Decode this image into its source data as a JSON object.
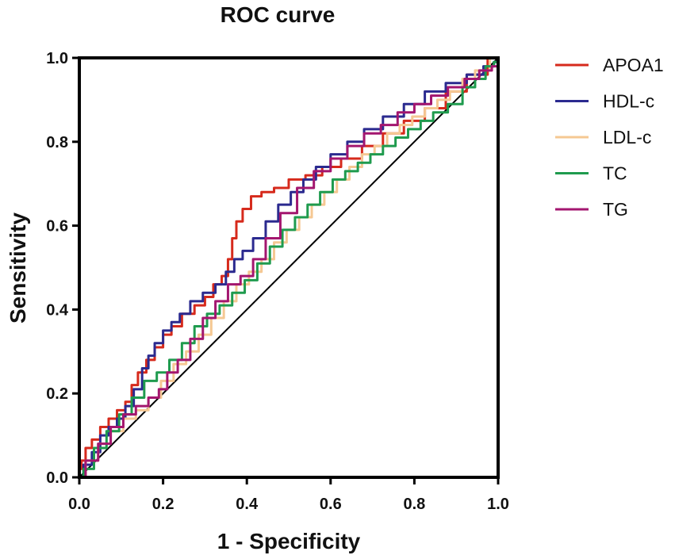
{
  "chart_data": {
    "type": "line",
    "title": "ROC curve",
    "xlabel": "1 - Specificity",
    "ylabel": "Sensitivity",
    "xlim": [
      0,
      1
    ],
    "ylim": [
      0,
      1
    ],
    "xticks": [
      "0.0",
      "0.2",
      "0.4",
      "0.6",
      "0.8",
      "1.0"
    ],
    "yticks": [
      "0.0",
      "0.2",
      "0.4",
      "0.6",
      "0.8",
      "1.0"
    ],
    "grid": false,
    "legend_position": "right",
    "reference_line": {
      "name": "diagonal",
      "x": [
        0,
        1
      ],
      "y": [
        0,
        1
      ],
      "color": "#000000"
    },
    "series": [
      {
        "name": "APOA1",
        "color": "#d62a1c",
        "x": [
          0.0,
          0.0,
          0.01,
          0.02,
          0.04,
          0.06,
          0.08,
          0.1,
          0.12,
          0.13,
          0.15,
          0.17,
          0.19,
          0.21,
          0.23,
          0.26,
          0.29,
          0.31,
          0.33,
          0.35,
          0.36,
          0.37,
          0.38,
          0.4,
          0.42,
          0.45,
          0.48,
          0.52,
          0.56,
          0.6,
          0.65,
          0.7,
          0.75,
          0.8,
          0.85,
          0.9,
          0.95,
          1.0
        ],
        "y": [
          0.0,
          0.02,
          0.04,
          0.07,
          0.09,
          0.12,
          0.14,
          0.16,
          0.18,
          0.22,
          0.25,
          0.28,
          0.31,
          0.34,
          0.36,
          0.39,
          0.41,
          0.43,
          0.46,
          0.48,
          0.52,
          0.57,
          0.61,
          0.64,
          0.67,
          0.68,
          0.69,
          0.71,
          0.72,
          0.74,
          0.76,
          0.79,
          0.82,
          0.85,
          0.88,
          0.92,
          0.96,
          1.0
        ]
      },
      {
        "name": "HDL-c",
        "color": "#2b2a8f",
        "x": [
          0.0,
          0.02,
          0.04,
          0.06,
          0.08,
          0.1,
          0.12,
          0.14,
          0.16,
          0.17,
          0.19,
          0.21,
          0.23,
          0.25,
          0.28,
          0.31,
          0.34,
          0.36,
          0.38,
          0.4,
          0.43,
          0.46,
          0.49,
          0.52,
          0.55,
          0.58,
          0.62,
          0.66,
          0.7,
          0.75,
          0.8,
          0.85,
          0.9,
          0.95,
          0.98,
          1.0
        ],
        "y": [
          0.0,
          0.03,
          0.06,
          0.1,
          0.12,
          0.14,
          0.17,
          0.21,
          0.26,
          0.29,
          0.32,
          0.35,
          0.37,
          0.39,
          0.42,
          0.44,
          0.46,
          0.49,
          0.52,
          0.54,
          0.57,
          0.61,
          0.65,
          0.68,
          0.71,
          0.74,
          0.77,
          0.8,
          0.83,
          0.86,
          0.89,
          0.92,
          0.94,
          0.96,
          0.98,
          0.99
        ]
      },
      {
        "name": "LDL-c",
        "color": "#f5c893",
        "x": [
          0.0,
          0.03,
          0.06,
          0.09,
          0.12,
          0.15,
          0.18,
          0.21,
          0.24,
          0.27,
          0.3,
          0.33,
          0.36,
          0.39,
          0.42,
          0.45,
          0.48,
          0.51,
          0.54,
          0.57,
          0.6,
          0.63,
          0.66,
          0.69,
          0.72,
          0.75,
          0.78,
          0.81,
          0.84,
          0.87,
          0.9,
          0.93,
          0.96,
          1.0
        ],
        "y": [
          0.0,
          0.04,
          0.08,
          0.11,
          0.14,
          0.16,
          0.19,
          0.23,
          0.27,
          0.3,
          0.34,
          0.38,
          0.42,
          0.46,
          0.49,
          0.52,
          0.56,
          0.59,
          0.62,
          0.65,
          0.68,
          0.71,
          0.74,
          0.77,
          0.79,
          0.82,
          0.84,
          0.86,
          0.88,
          0.9,
          0.92,
          0.95,
          0.97,
          1.0
        ]
      },
      {
        "name": "TC",
        "color": "#1f9b4e",
        "x": [
          0.0,
          0.02,
          0.05,
          0.08,
          0.11,
          0.14,
          0.17,
          0.2,
          0.23,
          0.26,
          0.29,
          0.32,
          0.35,
          0.38,
          0.41,
          0.44,
          0.47,
          0.5,
          0.53,
          0.56,
          0.59,
          0.62,
          0.65,
          0.68,
          0.71,
          0.74,
          0.77,
          0.8,
          0.83,
          0.86,
          0.9,
          0.93,
          0.96,
          0.98,
          1.0
        ],
        "y": [
          0.0,
          0.02,
          0.07,
          0.11,
          0.15,
          0.19,
          0.23,
          0.25,
          0.28,
          0.32,
          0.36,
          0.39,
          0.41,
          0.44,
          0.47,
          0.51,
          0.55,
          0.59,
          0.62,
          0.65,
          0.68,
          0.71,
          0.73,
          0.75,
          0.77,
          0.79,
          0.81,
          0.83,
          0.85,
          0.87,
          0.89,
          0.93,
          0.95,
          0.98,
          0.99
        ]
      },
      {
        "name": "TG",
        "color": "#a3166f",
        "x": [
          0.0,
          0.03,
          0.06,
          0.09,
          0.12,
          0.15,
          0.18,
          0.2,
          0.22,
          0.25,
          0.28,
          0.31,
          0.34,
          0.37,
          0.4,
          0.43,
          0.46,
          0.5,
          0.54,
          0.58,
          0.62,
          0.66,
          0.7,
          0.74,
          0.78,
          0.82,
          0.86,
          0.9,
          0.94,
          0.97,
          1.0
        ],
        "y": [
          0.0,
          0.04,
          0.08,
          0.12,
          0.15,
          0.17,
          0.19,
          0.21,
          0.25,
          0.28,
          0.33,
          0.38,
          0.42,
          0.46,
          0.48,
          0.52,
          0.57,
          0.63,
          0.69,
          0.73,
          0.76,
          0.79,
          0.82,
          0.84,
          0.87,
          0.89,
          0.91,
          0.93,
          0.95,
          0.97,
          0.98
        ]
      }
    ]
  }
}
